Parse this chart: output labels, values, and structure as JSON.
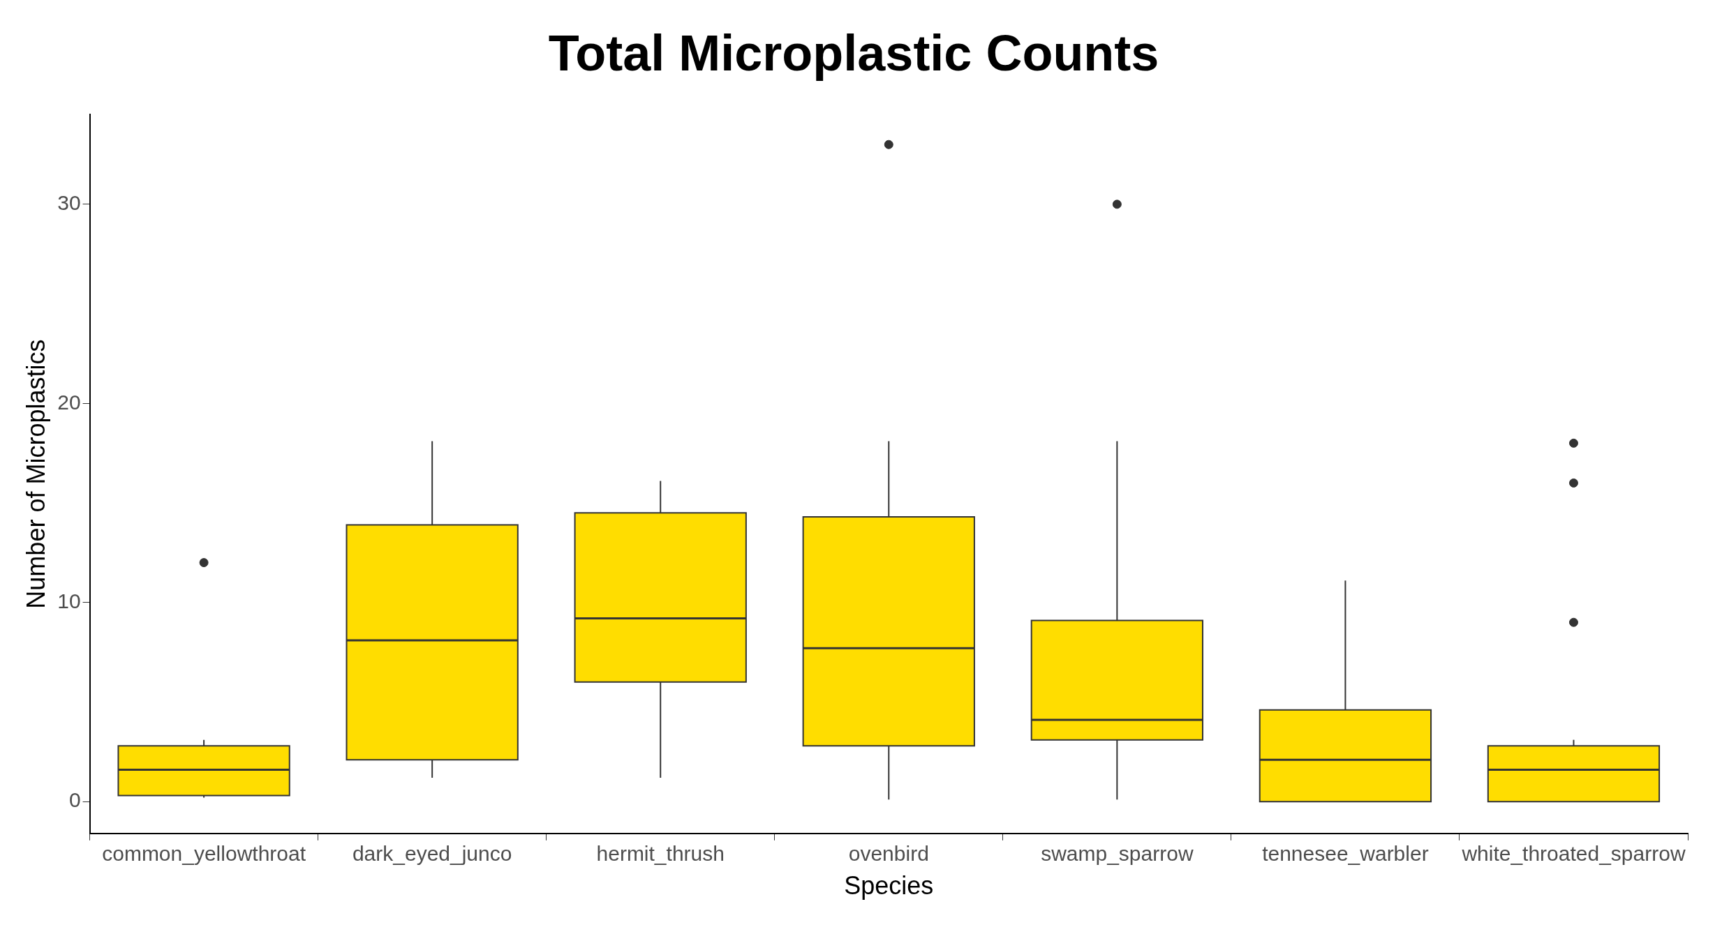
{
  "chart_data": {
    "type": "box",
    "title": "Total Microplastic Counts",
    "xlabel": "Species",
    "ylabel": "Number of Microplastics",
    "categories": [
      "common_yellowthroat",
      "dark_eyed_junco",
      "hermit_thrush",
      "ovenbird",
      "swamp_sparrow",
      "tennesee_warbler",
      "white_throated_sparrow"
    ],
    "series": [
      {
        "color": "#ffdd00",
        "boxes": [
          {
            "low": 0.2,
            "q1": 0.3,
            "median": 1.6,
            "q3": 2.8,
            "high": 3.1,
            "outliers": [
              12
            ]
          },
          {
            "low": 1.2,
            "q1": 2.1,
            "median": 8.1,
            "q3": 13.9,
            "high": 18.1
          },
          {
            "low": 1.2,
            "q1": 6,
            "median": 9.2,
            "q3": 14.5,
            "high": 16.1
          },
          {
            "low": 0.1,
            "q1": 2.8,
            "median": 7.7,
            "q3": 14.3,
            "high": 18.1,
            "outliers": [
              33
            ]
          },
          {
            "low": 0.1,
            "q1": 3.1,
            "median": 4.1,
            "q3": 9.1,
            "high": 18.1,
            "outliers": [
              30
            ]
          },
          {
            "low": 0,
            "q1": 0,
            "median": 2.1,
            "q3": 4.6,
            "high": 11.1
          },
          {
            "low": 0,
            "q1": 0,
            "median": 1.6,
            "q3": 2.8,
            "high": 3.1,
            "outliers": [
              9,
              16,
              18
            ]
          }
        ]
      }
    ],
    "ylim": [
      -1.6,
      34.5
    ],
    "yticks": [
      0,
      10,
      20,
      30
    ],
    "grid": false,
    "legend": false
  }
}
